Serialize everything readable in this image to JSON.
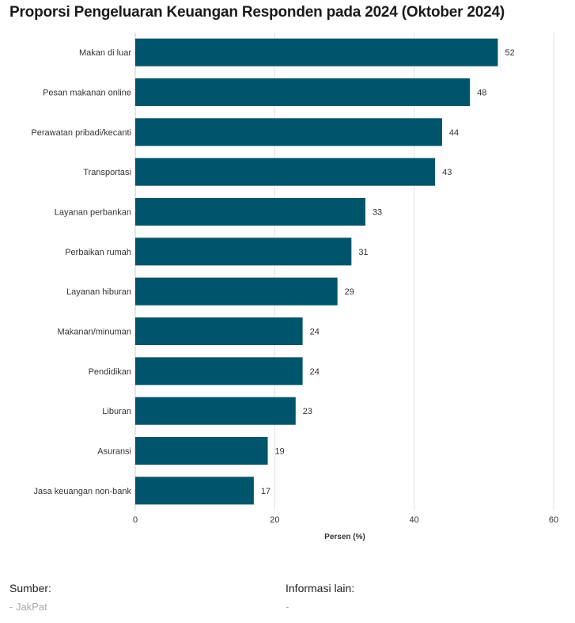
{
  "title": "Proporsi Pengeluaran Keuangan Responden pada 2024 (Oktober 2024)",
  "chart_data": {
    "type": "bar",
    "orientation": "horizontal",
    "categories": [
      "Makan di luar",
      "Pesan makanan online",
      "Perawatan pribadi/kecanti",
      "Transportasi",
      "Layanan perbankan",
      "Perbaikan rumah",
      "Layanan hiburan",
      "Makanan/minuman",
      "Pendidikan",
      "Liburan",
      "Asuransi",
      "Jasa keuangan non-bank"
    ],
    "values": [
      52,
      48,
      44,
      43,
      33,
      31,
      29,
      24,
      24,
      23,
      19,
      17
    ],
    "xlabel": "Persen (%)",
    "ylabel": "",
    "xlim": [
      0,
      60
    ],
    "xticks": [
      0,
      20,
      40,
      60
    ],
    "grid": true,
    "bar_color": "#00546b",
    "grid_color": "#e0e0e0"
  },
  "footer": {
    "source_label": "Sumber:",
    "source_value": "- JakPat",
    "info_label": "Informasi lain:",
    "info_value": "-"
  }
}
